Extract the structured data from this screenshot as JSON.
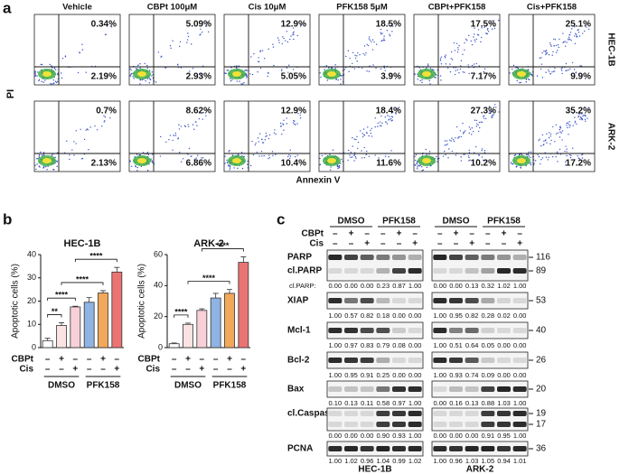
{
  "panel_a": {
    "label": "a",
    "columns": [
      "Vehicle",
      "CBPt 100μM",
      "Cis 10μM",
      "PFK158 5μM",
      "CBPt+PFK158",
      "Cis+PFK158"
    ],
    "rows": [
      {
        "name": "HEC-1B",
        "upper": [
          "0.34%",
          "5.09%",
          "12.9%",
          "18.5%",
          "17.5%",
          "25.1%"
        ],
        "lower": [
          "2.19%",
          "2.93%",
          "5.05%",
          "3.9%",
          "7.17%",
          "9.9%"
        ]
      },
      {
        "name": "ARK-2",
        "upper": [
          "0.7%",
          "8.62%",
          "12.9%",
          "18.4%",
          "27.3%",
          "35.2%"
        ],
        "lower": [
          "2.13%",
          "6.86%",
          "10.4%",
          "11.6%",
          "10.2%",
          "17.2%"
        ]
      }
    ],
    "y_label": "PI",
    "x_label": "Annexin V"
  },
  "panel_b_label": "b",
  "chart_data": [
    {
      "type": "bar",
      "title": "HEC-1B",
      "y_label": "Apoptotic cells (%)",
      "ylim": [
        0,
        40
      ],
      "yticks": [
        0,
        10,
        20,
        30,
        40
      ],
      "values": [
        3,
        9.5,
        17.5,
        19.5,
        23.5,
        32.5
      ],
      "errors": [
        1,
        1.2,
        0.3,
        2,
        1,
        2
      ],
      "colors": [
        "#ffffff",
        "#fbe3e3",
        "#f7d0d8",
        "#8fb4e3",
        "#f2a85a",
        "#ea7472"
      ],
      "treatments": [
        {
          "name": "CBPt",
          "signs": [
            "–",
            "+",
            "–",
            "–",
            "+",
            "–"
          ]
        },
        {
          "name": "Cis",
          "signs": [
            "–",
            "–",
            "+",
            "–",
            "–",
            "+"
          ]
        }
      ],
      "groups": [
        "DMSO",
        "PFK158"
      ],
      "significance": [
        {
          "from": 0,
          "to": 1,
          "label": "**"
        },
        {
          "from": 0,
          "to": 2,
          "label": "****"
        },
        {
          "from": 1,
          "to": 4,
          "label": "****"
        },
        {
          "from": 2,
          "to": 5,
          "label": "****"
        }
      ]
    },
    {
      "type": "bar",
      "title": "ARK-2",
      "y_label": "Apoptotic cells (%)",
      "ylim": [
        0,
        60
      ],
      "yticks": [
        0,
        20,
        40,
        60
      ],
      "values": [
        2.5,
        15,
        24,
        32,
        35,
        55
      ],
      "errors": [
        0.5,
        0.8,
        1,
        3,
        2.5,
        3.5
      ],
      "colors": [
        "#ffffff",
        "#fbe3e3",
        "#f7d0d8",
        "#8fb4e3",
        "#f2a85a",
        "#ea7472"
      ],
      "treatments": [
        {
          "name": "CBPt",
          "signs": [
            "–",
            "+",
            "–",
            "–",
            "+",
            "–"
          ]
        },
        {
          "name": "Cis",
          "signs": [
            "–",
            "–",
            "+",
            "–",
            "–",
            "+"
          ]
        }
      ],
      "groups": [
        "DMSO",
        "PFK158"
      ],
      "significance": [
        {
          "from": 0,
          "to": 1,
          "label": "****"
        },
        {
          "from": 1,
          "to": 4,
          "label": "****"
        },
        {
          "from": 2,
          "to": 5,
          "label": "****"
        }
      ]
    }
  ],
  "panel_c": {
    "label": "c",
    "treatment_names": [
      "CBPt",
      "Cis"
    ],
    "proteins": [
      {
        "labels": [
          "PARP",
          "cl.PARP"
        ],
        "markers": [
          116,
          89
        ],
        "quant_label": "cl.PARP:"
      },
      {
        "labels": [
          "XIAP"
        ],
        "markers": [
          53
        ]
      },
      {
        "labels": [
          "Mcl-1"
        ],
        "markers": [
          40
        ]
      },
      {
        "labels": [
          "Bcl-2"
        ],
        "markers": [
          26
        ]
      },
      {
        "labels": [
          "Bax"
        ],
        "markers": [
          20
        ]
      },
      {
        "labels": [
          "cl.Caspase-3"
        ],
        "markers": [
          19,
          17
        ]
      },
      {
        "labels": [
          "PCNA"
        ],
        "markers": [
          36
        ]
      }
    ],
    "blots": [
      {
        "cell_line": "HEC-1B",
        "groups": [
          "DMSO",
          "PFK158"
        ],
        "signs": [
          [
            "–",
            "+",
            "–",
            "–",
            "+",
            "–"
          ],
          [
            "–",
            "–",
            "+",
            "–",
            "–",
            "+"
          ]
        ],
        "quant": [
          [
            "0.00",
            "0.00",
            "0.00",
            "0.23",
            "0.87",
            "1.00"
          ],
          [
            "1.00",
            "0.57",
            "0.82",
            "0.18",
            "0.00",
            "0.00"
          ],
          [
            "1.00",
            "0.97",
            "0.83",
            "0.79",
            "0.08",
            "0.00"
          ],
          [
            "1.00",
            "0.95",
            "0.91",
            "0.25",
            "0.00",
            "0.00"
          ],
          [
            "0.10",
            "0.13",
            "0.11",
            "0.58",
            "0.97",
            "1.00"
          ],
          [
            "0.00",
            "0.00",
            "0.00",
            "0.90",
            "0.93",
            "1.00"
          ],
          [
            "1.00",
            "1.02",
            "0.96",
            "1.04",
            "0.99",
            "1.02"
          ]
        ]
      },
      {
        "cell_line": "ARK-2",
        "groups": [
          "DMSO",
          "PFK158"
        ],
        "signs": [
          [
            "–",
            "+",
            "–",
            "–",
            "+",
            "–"
          ],
          [
            "–",
            "–",
            "+",
            "–",
            "–",
            "+"
          ]
        ],
        "quant": [
          [
            "0.00",
            "0.00",
            "0.13",
            "0.32",
            "1.02",
            "1.00"
          ],
          [
            "1.00",
            "0.95",
            "0.82",
            "0.28",
            "0.02",
            "0.00"
          ],
          [
            "1.00",
            "0.51",
            "0.64",
            "0.05",
            "0.00",
            "0.00"
          ],
          [
            "1.00",
            "0.93",
            "0.74",
            "0.09",
            "0.00",
            "0.00"
          ],
          [
            "0.00",
            "0.16",
            "0.13",
            "0.88",
            "1.03",
            "1.00"
          ],
          [
            "0.00",
            "0.00",
            "0.00",
            "0.91",
            "0.95",
            "1.00"
          ],
          [
            "1.00",
            "0.96",
            "1.03",
            "1.05",
            "0.94",
            "1.01"
          ]
        ]
      }
    ]
  }
}
